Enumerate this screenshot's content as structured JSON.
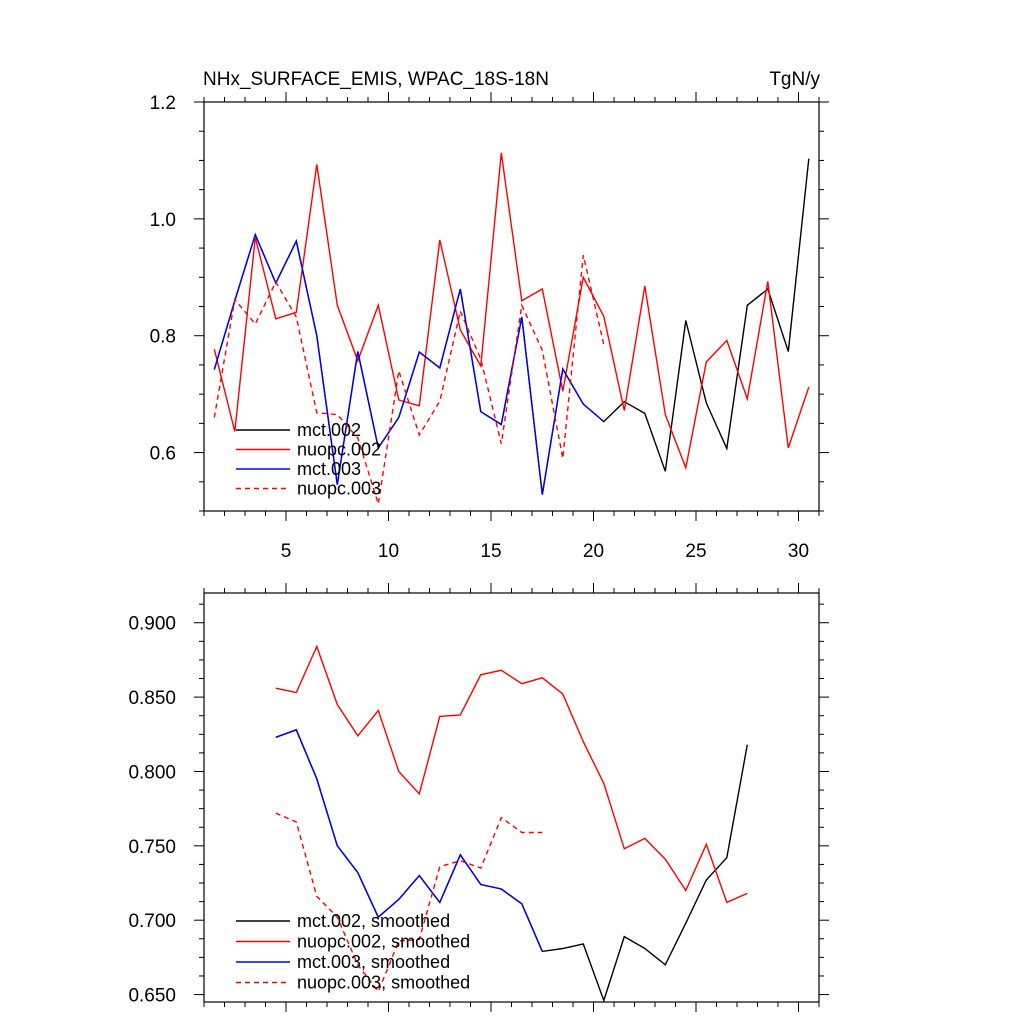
{
  "chart_data": [
    {
      "type": "line",
      "title": "NHx_SURFACE_EMIS, WPAC_18S-18N",
      "units": "TgN/y",
      "xlabel": "",
      "ylabel": "",
      "xlim": [
        1,
        31
      ],
      "ylim": [
        0.5,
        1.2
      ],
      "xticks": [
        5,
        10,
        15,
        20,
        25,
        30
      ],
      "yticks": [
        0.6,
        0.8,
        1.0,
        1.2
      ],
      "ytick_labels": [
        "0.6",
        "0.8",
        "1.0",
        "1.2"
      ],
      "legend_position": "bottom-left",
      "series": [
        {
          "name": "mct.002",
          "color": "#000000",
          "dash": "solid",
          "x": [
            1.5,
            2.5,
            3.5,
            4.5,
            5.5,
            6.5,
            7.5,
            8.5,
            9.5,
            10.5,
            11.5,
            12.5,
            13.5,
            14.5,
            15.5,
            16.5,
            17.5,
            18.5,
            19.5,
            20.5,
            21.5,
            22.5,
            23.5,
            24.5,
            25.5,
            26.5,
            27.5,
            28.5,
            29.5,
            30.5
          ],
          "values": [
            0.742,
            0.86,
            0.973,
            0.89,
            0.962,
            0.8,
            0.545,
            0.773,
            0.608,
            0.66,
            0.772,
            0.745,
            0.88,
            0.67,
            0.648,
            0.832,
            0.528,
            0.743,
            0.683,
            0.653,
            0.687,
            0.667,
            0.568,
            0.826,
            0.685,
            0.607,
            0.852,
            0.88,
            0.773,
            1.103
          ]
        },
        {
          "name": "nuopc.002",
          "color": "#ff0000",
          "dash": "solid",
          "x": [
            1.5,
            2.5,
            3.5,
            4.5,
            5.5,
            6.5,
            7.5,
            8.5,
            9.5,
            10.5,
            11.5,
            12.5,
            13.5,
            14.5,
            15.5,
            16.5,
            17.5,
            18.5,
            19.5,
            20.5,
            21.5,
            22.5,
            23.5,
            24.5,
            25.5,
            26.5,
            27.5,
            28.5,
            29.5,
            30.5
          ],
          "values": [
            0.777,
            0.636,
            0.968,
            0.829,
            0.84,
            1.093,
            0.852,
            0.757,
            0.852,
            0.69,
            0.68,
            0.964,
            0.81,
            0.748,
            1.113,
            0.86,
            0.88,
            0.705,
            0.9,
            0.833,
            0.672,
            0.885,
            0.665,
            0.574,
            0.755,
            0.792,
            0.692,
            0.893,
            0.608,
            0.712
          ]
        },
        {
          "name": "mct.003",
          "color": "#0000ff",
          "dash": "solid",
          "x": [
            1.5,
            2.5,
            3.5,
            4.5,
            5.5,
            6.5,
            7.5,
            8.5,
            9.5,
            10.5,
            11.5,
            12.5,
            13.5,
            14.5,
            15.5,
            16.5,
            17.5,
            18.5,
            19.5,
            20.5
          ],
          "values": [
            0.742,
            0.86,
            0.973,
            0.89,
            0.962,
            0.8,
            0.545,
            0.773,
            0.608,
            0.66,
            0.772,
            0.745,
            0.88,
            0.67,
            0.648,
            0.832,
            0.528,
            0.743,
            0.683,
            0.653
          ]
        },
        {
          "name": "nuopc.003",
          "color": "#ff0000",
          "dash": "dashed",
          "x": [
            1.5,
            2.5,
            3.5,
            4.5,
            5.5,
            6.5,
            7.5,
            8.5,
            9.5,
            10.5,
            11.5,
            12.5,
            13.5,
            14.5,
            15.5,
            16.5,
            17.5,
            18.5,
            19.5,
            20.5
          ],
          "values": [
            0.66,
            0.862,
            0.82,
            0.892,
            0.832,
            0.668,
            0.665,
            0.625,
            0.512,
            0.74,
            0.63,
            0.688,
            0.842,
            0.76,
            0.615,
            0.852,
            0.775,
            0.59,
            0.938,
            0.785
          ]
        }
      ]
    },
    {
      "type": "line",
      "title": "",
      "xlabel": "",
      "ylabel": "",
      "xlim": [
        1,
        31
      ],
      "ylim": [
        0.645,
        0.92
      ],
      "yticks": [
        0.65,
        0.7,
        0.75,
        0.8,
        0.85,
        0.9
      ],
      "ytick_labels": [
        "0.650",
        "0.700",
        "0.750",
        "0.800",
        "0.850",
        "0.900"
      ],
      "legend_position": "bottom-left",
      "series": [
        {
          "name": "mct.002, smoothed",
          "color": "#000000",
          "dash": "solid",
          "x": [
            4.5,
            5.5,
            6.5,
            7.5,
            8.5,
            9.5,
            10.5,
            11.5,
            12.5,
            13.5,
            14.5,
            15.5,
            16.5,
            17.5,
            18.5,
            19.5,
            20.5,
            21.5,
            22.5,
            23.5,
            24.5,
            25.5,
            26.5,
            27.5
          ],
          "values": [
            0.823,
            0.828,
            0.795,
            0.75,
            0.732,
            0.702,
            0.714,
            0.73,
            0.712,
            0.744,
            0.724,
            0.721,
            0.711,
            0.679,
            0.681,
            0.684,
            0.646,
            0.689,
            0.681,
            0.67,
            0.698,
            0.727,
            0.742,
            0.818
          ]
        },
        {
          "name": "nuopc.002, smoothed",
          "color": "#ff0000",
          "dash": "solid",
          "x": [
            4.5,
            5.5,
            6.5,
            7.5,
            8.5,
            9.5,
            10.5,
            11.5,
            12.5,
            13.5,
            14.5,
            15.5,
            16.5,
            17.5,
            18.5,
            19.5,
            20.5,
            21.5,
            22.5,
            23.5,
            24.5,
            25.5,
            26.5,
            27.5
          ],
          "values": [
            0.856,
            0.853,
            0.884,
            0.845,
            0.824,
            0.841,
            0.8,
            0.785,
            0.837,
            0.838,
            0.865,
            0.868,
            0.859,
            0.863,
            0.852,
            0.82,
            0.792,
            0.748,
            0.755,
            0.741,
            0.72,
            0.751,
            0.712,
            0.718
          ]
        },
        {
          "name": "mct.003, smoothed",
          "color": "#0000ff",
          "dash": "solid",
          "x": [
            4.5,
            5.5,
            6.5,
            7.5,
            8.5,
            9.5,
            10.5,
            11.5,
            12.5,
            13.5,
            14.5,
            15.5,
            16.5,
            17.5
          ],
          "values": [
            0.823,
            0.828,
            0.795,
            0.75,
            0.732,
            0.702,
            0.714,
            0.73,
            0.712,
            0.744,
            0.724,
            0.721,
            0.711,
            0.679
          ]
        },
        {
          "name": "nuopc.003, smoothed",
          "color": "#ff0000",
          "dash": "dashed",
          "x": [
            4.5,
            5.5,
            6.5,
            7.5,
            8.5,
            9.5,
            10.5,
            11.5,
            12.5,
            13.5,
            14.5,
            15.5,
            16.5,
            17.5
          ],
          "values": [
            0.772,
            0.766,
            0.716,
            0.702,
            0.67,
            0.652,
            0.686,
            0.687,
            0.736,
            0.74,
            0.735,
            0.769,
            0.759,
            0.759
          ]
        }
      ]
    }
  ]
}
